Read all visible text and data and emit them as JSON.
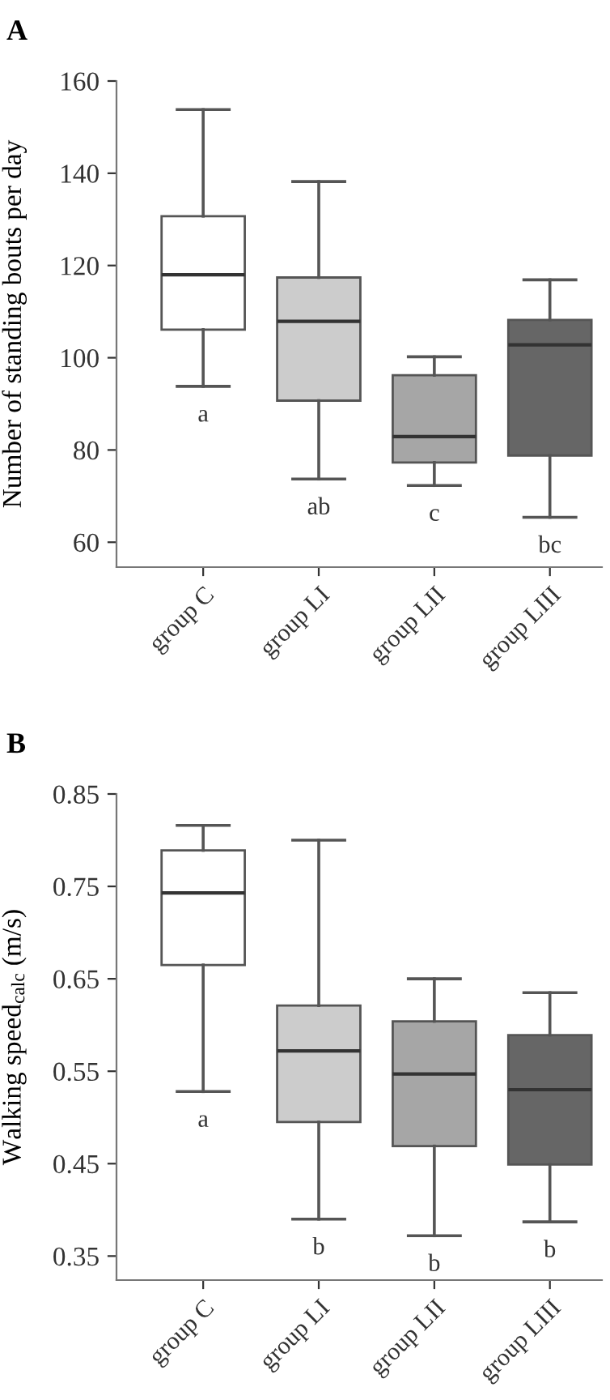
{
  "chart_data": [
    {
      "type": "box",
      "title": "A",
      "ylabel": "Number of standing bouts per day",
      "categories": [
        "group C",
        "group LI",
        "group LII",
        "group LIII"
      ],
      "colors": [
        "#ffffff",
        "#cccccc",
        "#a6a6a6",
        "#666666"
      ],
      "boxes": [
        {
          "low": 93.8,
          "q1": 106.1,
          "median": 118.0,
          "q3": 130.7,
          "high": 153.8
        },
        {
          "low": 73.7,
          "q1": 90.7,
          "median": 107.9,
          "q3": 117.4,
          "high": 138.2
        },
        {
          "low": 72.3,
          "q1": 77.3,
          "median": 82.9,
          "q3": 96.2,
          "high": 100.2
        },
        {
          "low": 65.4,
          "q1": 78.8,
          "median": 102.8,
          "q3": 108.2,
          "high": 116.9
        }
      ],
      "ylim": [
        54.6,
        160
      ],
      "yticks": [
        60,
        80,
        100,
        120,
        140,
        160
      ],
      "grid": false,
      "annotations": [
        "a",
        "ab",
        "c",
        "bc"
      ]
    },
    {
      "type": "box",
      "title": "B",
      "ylabel": "Walking speed$_{calc}$ (m/s)",
      "categories": [
        "group C",
        "group LI",
        "group LII",
        "group LIII"
      ],
      "colors": [
        "#ffffff",
        "#cccccc",
        "#a6a6a6",
        "#666666"
      ],
      "boxes": [
        {
          "low": 0.528,
          "q1": 0.665,
          "median": 0.743,
          "q3": 0.789,
          "high": 0.816
        },
        {
          "low": 0.39,
          "q1": 0.495,
          "median": 0.572,
          "q3": 0.621,
          "high": 0.8
        },
        {
          "low": 0.372,
          "q1": 0.469,
          "median": 0.547,
          "q3": 0.604,
          "high": 0.65
        },
        {
          "low": 0.387,
          "q1": 0.449,
          "median": 0.53,
          "q3": 0.589,
          "high": 0.635
        }
      ],
      "ylim": [
        0.324,
        0.85
      ],
      "yticks": [
        0.35,
        0.45,
        0.55,
        0.65,
        0.75,
        0.85
      ],
      "grid": false,
      "annotations": [
        "a",
        "b",
        "b",
        "b"
      ]
    }
  ]
}
